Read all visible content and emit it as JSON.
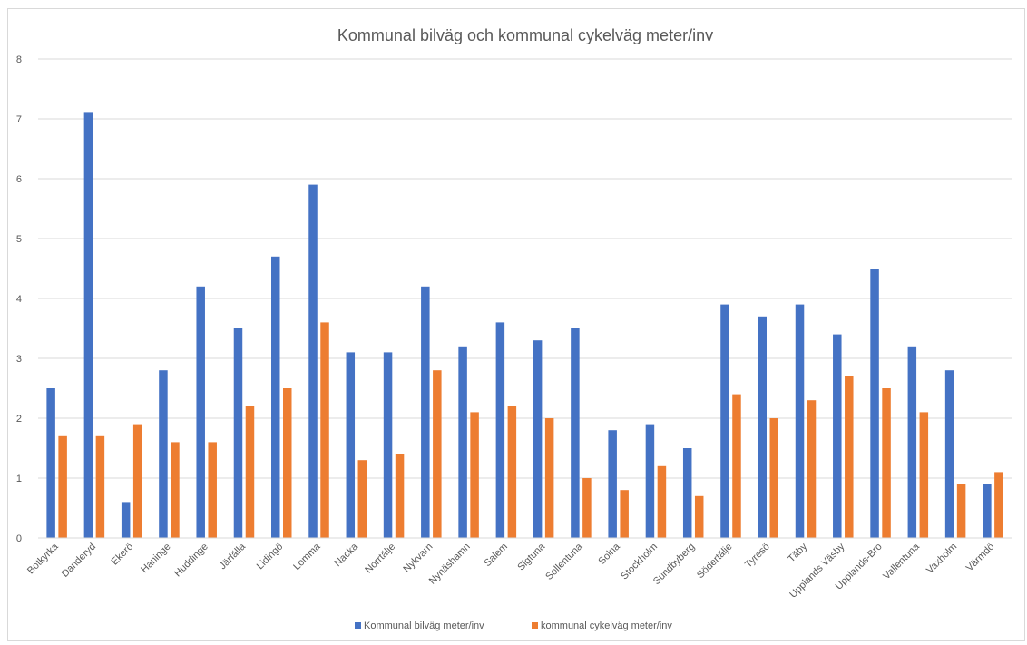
{
  "chart_data": {
    "type": "bar",
    "title": "Kommunal bilväg och kommunal cykelväg meter/inv",
    "xlabel": "",
    "ylabel": "",
    "ylim": [
      0,
      8
    ],
    "yticks": [
      "0",
      "1",
      "2",
      "3",
      "4",
      "5",
      "6",
      "7",
      "8"
    ],
    "grid": true,
    "legend_position": "bottom",
    "categories": [
      "Botkyrka",
      "Danderyd",
      "Ekerö",
      "Haninge",
      "Huddinge",
      "Järfälla",
      "Lidingö",
      "Lomma",
      "Nacka",
      "Norrtälje",
      "Nykvarn",
      "Nynäshamn",
      "Salem",
      "Sigtuna",
      "Sollentuna",
      "Solna",
      "Stockholm",
      "Sundbyberg",
      "Södertälje",
      "Tyresö",
      "Täby",
      "Upplands Väsby",
      "Upplands-Bro",
      "Vallentuna",
      "Vaxholm",
      "Värmdö"
    ],
    "series": [
      {
        "name": "Kommunal bilväg meter/inv",
        "color": "#4472c4",
        "values": [
          2.5,
          7.1,
          0.6,
          2.8,
          4.2,
          3.5,
          4.7,
          5.9,
          3.1,
          3.1,
          4.2,
          3.2,
          3.6,
          3.3,
          3.5,
          1.8,
          1.9,
          1.5,
          3.9,
          3.7,
          3.9,
          3.4,
          4.5,
          3.2,
          2.8,
          0.9
        ]
      },
      {
        "name": "kommunal cykelväg meter/inv",
        "color": "#ed7d31",
        "values": [
          1.7,
          1.7,
          1.9,
          1.6,
          1.6,
          2.2,
          2.5,
          3.6,
          1.3,
          1.4,
          2.8,
          2.1,
          2.2,
          2.0,
          1.0,
          0.8,
          1.2,
          0.7,
          2.4,
          2.0,
          2.3,
          2.7,
          2.5,
          2.1,
          0.9,
          1.1
        ]
      }
    ]
  }
}
